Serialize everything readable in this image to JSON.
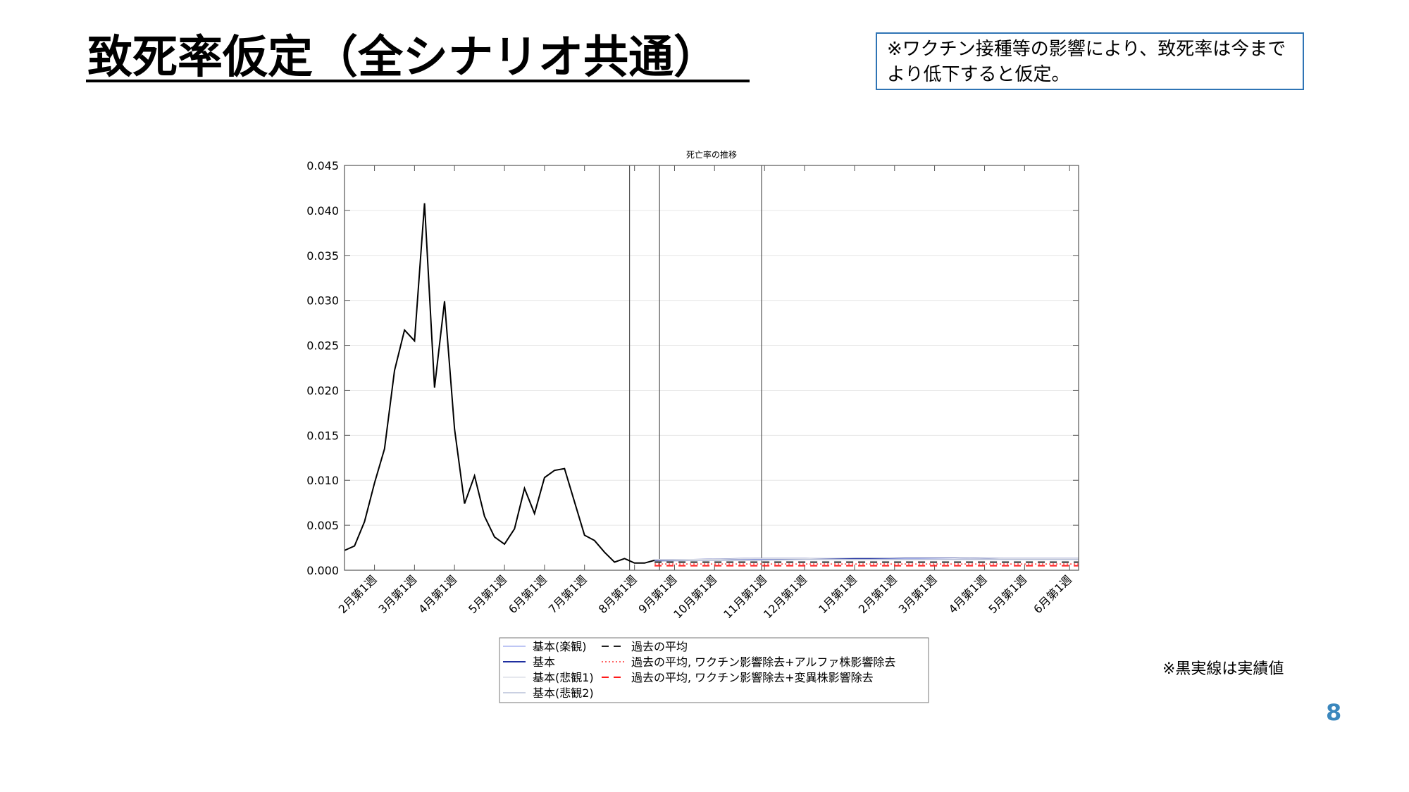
{
  "slide": {
    "title": "致死率仮定（全シナリオ共通）",
    "note_box": "※ワクチン接種等の影響により、致死率は今までより低下すると仮定。",
    "actual_note": "※黒実線は実績値",
    "page_number": "8"
  },
  "colors": {
    "accent_blue": "#2f74b5",
    "page_number": "#3b87bd"
  },
  "chart_data": {
    "type": "line",
    "title": "死亡率の推移",
    "xlabel": "",
    "ylabel": "",
    "ylim": [
      0,
      0.045
    ],
    "yticks": [
      "0.000",
      "0.005",
      "0.010",
      "0.015",
      "0.020",
      "0.025",
      "0.030",
      "0.035",
      "0.040",
      "0.045"
    ],
    "x_domain_weeks": [
      0,
      73.4
    ],
    "x_ticks": [
      {
        "label": "2月第1週",
        "week": 3
      },
      {
        "label": "3月第1週",
        "week": 7
      },
      {
        "label": "4月第1週",
        "week": 11
      },
      {
        "label": "5月第1週",
        "week": 16
      },
      {
        "label": "6月第1週",
        "week": 20
      },
      {
        "label": "7月第1週",
        "week": 24
      },
      {
        "label": "8月第1週",
        "week": 29
      },
      {
        "label": "9月第1週",
        "week": 33
      },
      {
        "label": "10月第1週",
        "week": 37
      },
      {
        "label": "11月第1週",
        "week": 42
      },
      {
        "label": "12月第1週",
        "week": 46
      },
      {
        "label": "1月第1週",
        "week": 51
      },
      {
        "label": "2月第1週",
        "week": 55
      },
      {
        "label": "3月第1週",
        "week": 59
      },
      {
        "label": "4月第1週",
        "week": 64
      },
      {
        "label": "5月第1週",
        "week": 68
      },
      {
        "label": "6月第1週",
        "week": 72.5
      }
    ],
    "vertical_lines_weeks": [
      28.5,
      31.5,
      41.7
    ],
    "grid": true,
    "legend_position": "bottom",
    "series": [
      {
        "name": "実績値",
        "legend": false,
        "color": "#000000",
        "width": 2,
        "dash": "",
        "x": [
          0,
          1,
          2,
          3,
          4,
          5,
          6,
          7,
          8,
          9,
          10,
          11,
          12,
          13,
          14,
          15,
          16,
          17,
          18,
          19,
          20,
          21,
          22,
          23,
          24,
          25,
          26,
          27,
          28,
          29,
          30,
          31
        ],
        "y": [
          0.0022,
          0.0027,
          0.0054,
          0.0097,
          0.0135,
          0.0222,
          0.0267,
          0.0255,
          0.0408,
          0.0203,
          0.0299,
          0.0157,
          0.0074,
          0.0105,
          0.006,
          0.0037,
          0.0029,
          0.0046,
          0.0091,
          0.0063,
          0.0103,
          0.0111,
          0.0113,
          0.0076,
          0.0039,
          0.0033,
          0.002,
          0.0009,
          0.0013,
          0.0008,
          0.0008,
          0.0011
        ]
      },
      {
        "name": "基本(楽観)",
        "legend": true,
        "color": "#a9b4f0",
        "width": 1.5,
        "dash": "",
        "x": [
          31,
          36,
          41,
          46,
          51,
          56,
          61,
          66,
          71,
          73.4
        ],
        "y": [
          0.0011,
          0.0011,
          0.0012,
          0.0012,
          0.0012,
          0.0013,
          0.0012,
          0.0012,
          0.0012,
          0.0012
        ]
      },
      {
        "name": "基本",
        "legend": true,
        "color": "#1f2fa0",
        "width": 2,
        "dash": "",
        "x": [
          31,
          36,
          41,
          46,
          51,
          56,
          61,
          66,
          71,
          73.4
        ],
        "y": [
          0.0011,
          0.0012,
          0.0013,
          0.0013,
          0.0013,
          0.0014,
          0.0014,
          0.0013,
          0.0013,
          0.0013
        ]
      },
      {
        "name": "基本(悲観1)",
        "legend": true,
        "color": "#dde0e8",
        "width": 1.5,
        "dash": "",
        "x": [
          31,
          36,
          41,
          46,
          51,
          56,
          61,
          66,
          71,
          73.4
        ],
        "y": [
          0.0012,
          0.0012,
          0.0013,
          0.0013,
          0.0014,
          0.0014,
          0.0014,
          0.0013,
          0.0013,
          0.0013
        ]
      },
      {
        "name": "基本(悲観2)",
        "legend": true,
        "color": "#b8c0d8",
        "width": 1.5,
        "dash": "",
        "x": [
          31,
          36,
          41,
          46,
          51,
          56,
          61,
          66,
          71,
          73.4
        ],
        "y": [
          0.001,
          0.0011,
          0.0011,
          0.0012,
          0.0012,
          0.0012,
          0.0012,
          0.0012,
          0.0012,
          0.0012
        ]
      },
      {
        "name": "過去の平均",
        "legend": true,
        "color": "#222222",
        "width": 2,
        "dash": "10,7",
        "x": [
          31,
          73.4
        ],
        "y": [
          0.0009,
          0.0009
        ]
      },
      {
        "name": "過去の平均, ワクチン影響除去+アルファ株影響除去",
        "legend": true,
        "color": "#ff3030",
        "width": 1.5,
        "dash": "2,3",
        "x": [
          31,
          73.4
        ],
        "y": [
          0.0007,
          0.0007
        ]
      },
      {
        "name": "過去の平均, ワクチン影響除去+変異株影響除去",
        "legend": true,
        "color": "#ff1a1a",
        "width": 2,
        "dash": "10,7",
        "x": [
          31,
          73.4
        ],
        "y": [
          0.0005,
          0.0005
        ]
      }
    ]
  }
}
